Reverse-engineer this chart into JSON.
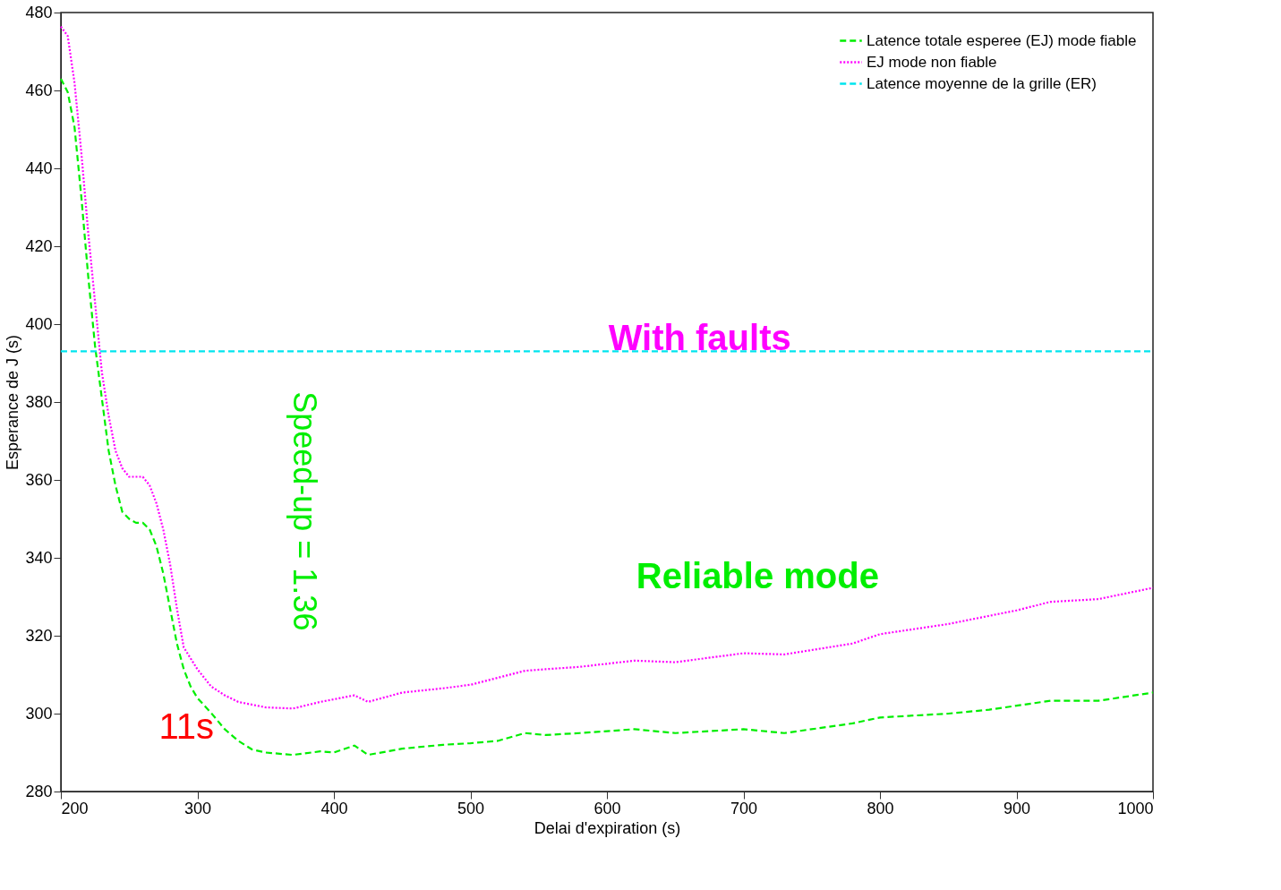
{
  "chart_data": {
    "type": "line",
    "xlabel": "Delai d'expiration (s)",
    "ylabel": "Esperance de J (s)",
    "xlim": [
      200,
      1000
    ],
    "xticks": [
      200,
      300,
      400,
      500,
      600,
      700,
      800,
      900,
      1000
    ],
    "ylim": [
      280,
      480
    ],
    "yticks": [
      280,
      300,
      320,
      340,
      360,
      380,
      400,
      420,
      440,
      460,
      480
    ],
    "grid": false,
    "legend": "top right",
    "marker": "none",
    "series": [
      {
        "name": "Latence totale esperee (EJ) mode fiable",
        "color": "#00ee00",
        "line_style": "dashed",
        "x": [
          200,
          205,
          210,
          215,
          220,
          225,
          230,
          235,
          240,
          245,
          250,
          255,
          260,
          265,
          270,
          275,
          280,
          285,
          290,
          295,
          300,
          310,
          320,
          330,
          340,
          350,
          370,
          390,
          400,
          415,
          425,
          450,
          480,
          500,
          520,
          540,
          555,
          580,
          620,
          650,
          700,
          730,
          780,
          800,
          850,
          880,
          925,
          960,
          1000
        ],
        "values": [
          463,
          459.6,
          450.6,
          432.6,
          412.4,
          394.5,
          381,
          367.5,
          358.6,
          351.8,
          350,
          349,
          349,
          347.3,
          343,
          336,
          327,
          318,
          311.4,
          307,
          304,
          300.2,
          296,
          293,
          290.8,
          290,
          289.4,
          290.3,
          290,
          291.8,
          289.4,
          291,
          292,
          292.4,
          293,
          295,
          294.5,
          295,
          296,
          295,
          296,
          295,
          297.5,
          299,
          300,
          301,
          303.3,
          303.3,
          305.4
        ]
      },
      {
        "name": "EJ mode non fiable",
        "color": "#ff00ff",
        "line_style": "dotted",
        "x": [
          200,
          205,
          210,
          215,
          220,
          225,
          230,
          235,
          240,
          245,
          250,
          260,
          265,
          270,
          275,
          280,
          285,
          290,
          300,
          310,
          320,
          330,
          350,
          370,
          390,
          415,
          425,
          450,
          480,
          500,
          540,
          555,
          580,
          620,
          650,
          700,
          730,
          780,
          800,
          850,
          900,
          925,
          960,
          1000
        ],
        "values": [
          476.4,
          474,
          462,
          444,
          423.6,
          405.7,
          387.7,
          376.5,
          367.5,
          363,
          360.8,
          360.8,
          358.6,
          354,
          347.3,
          338.4,
          327,
          317,
          311.4,
          307,
          304.7,
          303,
          301.6,
          301.3,
          303,
          304.7,
          303,
          305.4,
          306.5,
          307.4,
          311,
          311.4,
          312,
          313.6,
          313.2,
          315.5,
          315.2,
          318,
          320.4,
          323,
          326.5,
          328.7,
          329.4,
          332.3
        ]
      },
      {
        "name": "Latence moyenne de la grille (ER)",
        "color": "#00e5ee",
        "line_style": "dashed",
        "x": [
          200,
          1000
        ],
        "values": [
          393,
          393
        ]
      }
    ],
    "annotations": [
      "With faults",
      "Reliable mode",
      "Speed-up = 1.36",
      "11s"
    ]
  }
}
